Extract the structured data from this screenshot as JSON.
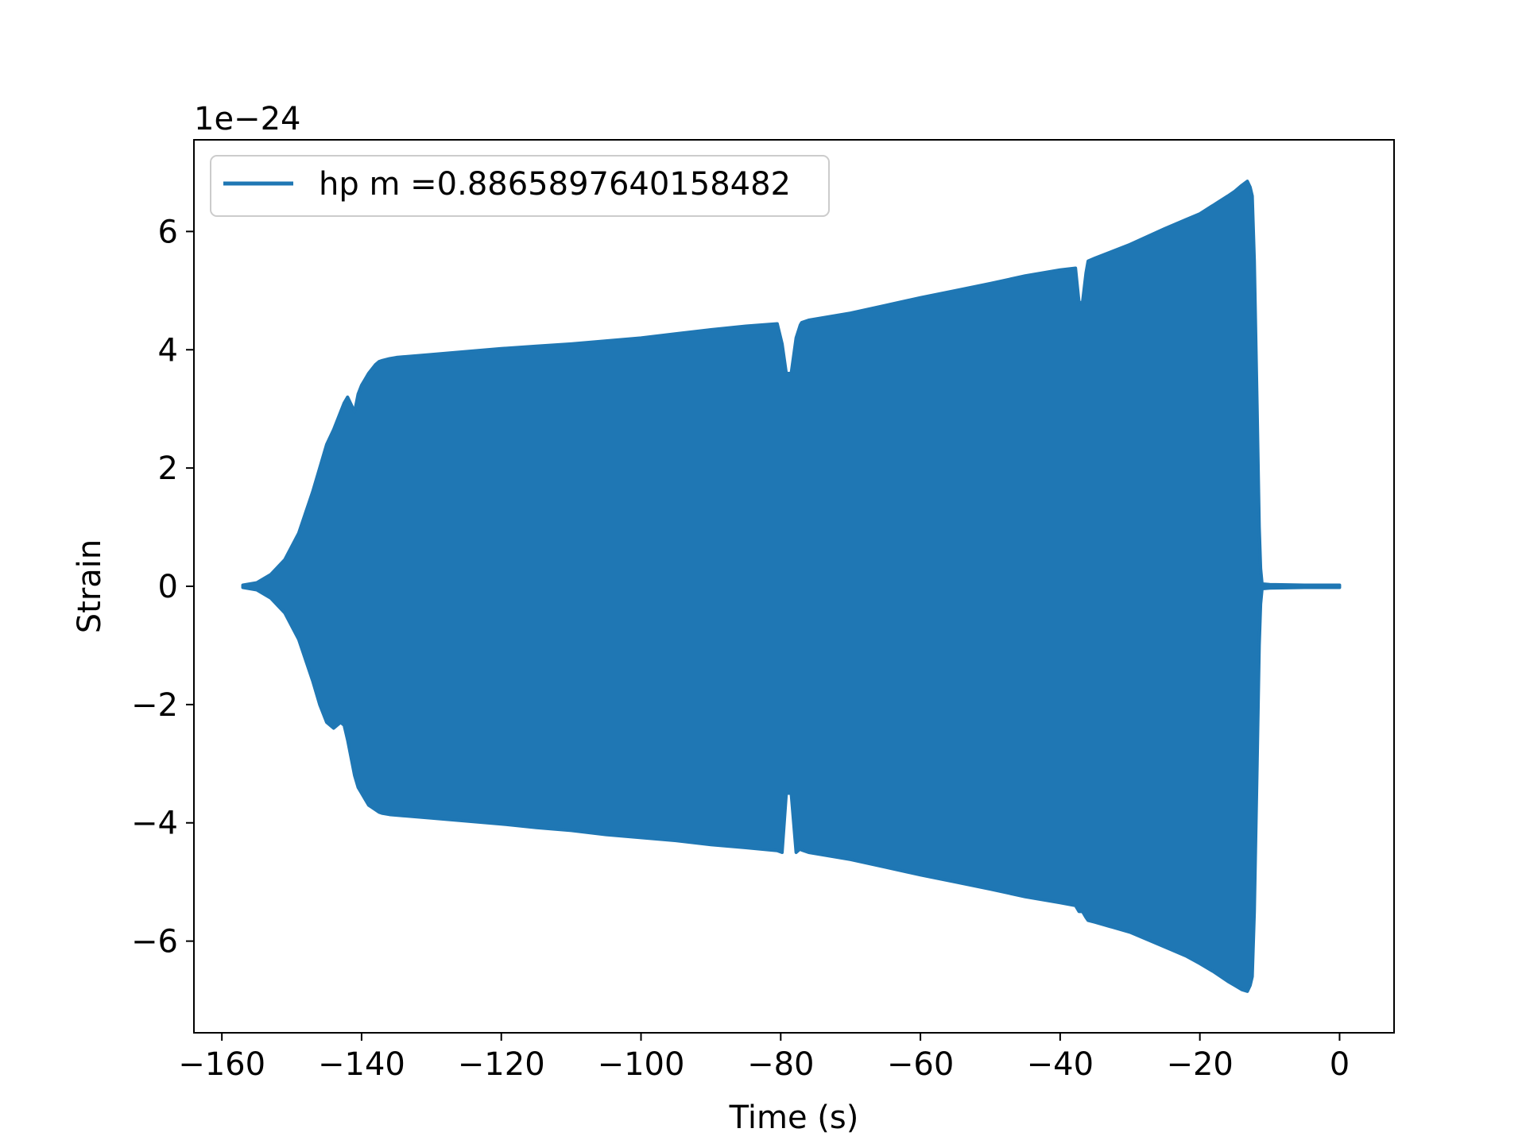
{
  "chart_data": {
    "type": "area",
    "title": "",
    "xlabel": "Time (s)",
    "ylabel": "Strain",
    "y_offset_text": "1e−24",
    "xlim": [
      -164,
      7.8
    ],
    "ylim": [
      -7.55,
      7.55
    ],
    "x_ticks": [
      -160,
      -140,
      -120,
      -100,
      -80,
      -60,
      -40,
      -20,
      0
    ],
    "x_tick_labels": [
      "−160",
      "−140",
      "−120",
      "−100",
      "−80",
      "−60",
      "−40",
      "−20",
      "0"
    ],
    "y_ticks": [
      -6,
      -4,
      -2,
      0,
      2,
      4,
      6
    ],
    "y_tick_labels": [
      "−6",
      "−4",
      "−2",
      "0",
      "2",
      "4",
      "6"
    ],
    "grid": false,
    "legend_position": "upper-left",
    "series": [
      {
        "name": "hp m =0.8865897640158482",
        "color": "#1f77b4",
        "envelope": {
          "x": [
            -157,
            -155,
            -153,
            -151,
            -149,
            -148,
            -147,
            -146,
            -145,
            -144,
            -143,
            -142.5,
            -142,
            -141,
            -140.5,
            -140,
            -139.5,
            -139,
            -138,
            -137.5,
            -137,
            -136,
            -135,
            -134,
            -130,
            -125,
            -120,
            -115,
            -110,
            -105,
            -100,
            -95,
            -90,
            -85,
            -80.5,
            -79.8,
            -79.2,
            -78.5,
            -77.8,
            -77.2,
            -77,
            -76,
            -70,
            -65,
            -60,
            -55,
            -50,
            -45,
            -40,
            -37.8,
            -37.3,
            -36.8,
            -36.3,
            -36,
            -35,
            -30,
            -25,
            -22,
            -20,
            -18,
            -16,
            -15,
            -14,
            -13.2,
            -12.8,
            -12.5,
            -12.2,
            -11.8,
            -11.5,
            -11.3,
            -11.1,
            -11,
            -10,
            -5,
            -2,
            0
          ],
          "upper": [
            0.02,
            0.06,
            0.2,
            0.45,
            0.9,
            1.25,
            1.6,
            2.0,
            2.4,
            2.65,
            2.95,
            3.1,
            3.2,
            2.95,
            3.25,
            3.4,
            3.5,
            3.6,
            3.75,
            3.8,
            3.82,
            3.85,
            3.87,
            3.88,
            3.92,
            3.97,
            4.02,
            4.06,
            4.1,
            4.15,
            4.2,
            4.27,
            4.34,
            4.4,
            4.44,
            4.1,
            3.6,
            3.6,
            4.2,
            4.42,
            4.46,
            4.5,
            4.62,
            4.75,
            4.88,
            5.0,
            5.12,
            5.25,
            5.35,
            5.38,
            4.8,
            4.8,
            5.3,
            5.5,
            5.55,
            5.78,
            6.05,
            6.2,
            6.3,
            6.45,
            6.6,
            6.68,
            6.78,
            6.85,
            6.75,
            6.6,
            5.5,
            3.0,
            1.0,
            0.3,
            0.05,
            0.04,
            0.03,
            0.02,
            0.02,
            0.02
          ],
          "lower": [
            -0.02,
            -0.06,
            -0.2,
            -0.45,
            -0.9,
            -1.25,
            -1.6,
            -2.0,
            -2.3,
            -2.4,
            -2.3,
            -2.35,
            -2.6,
            -3.2,
            -3.4,
            -3.5,
            -3.6,
            -3.7,
            -3.78,
            -3.82,
            -3.84,
            -3.86,
            -3.87,
            -3.88,
            -3.92,
            -3.97,
            -4.02,
            -4.08,
            -4.13,
            -4.2,
            -4.25,
            -4.3,
            -4.37,
            -4.42,
            -4.47,
            -4.5,
            -3.5,
            -3.5,
            -4.5,
            -4.44,
            -4.46,
            -4.5,
            -4.62,
            -4.75,
            -4.88,
            -5.0,
            -5.12,
            -5.25,
            -5.35,
            -5.4,
            -5.5,
            -5.5,
            -5.6,
            -5.65,
            -5.68,
            -5.85,
            -6.1,
            -6.25,
            -6.38,
            -6.52,
            -6.68,
            -6.75,
            -6.82,
            -6.85,
            -6.75,
            -6.6,
            -5.5,
            -3.0,
            -1.0,
            -0.3,
            -0.05,
            -0.04,
            -0.03,
            -0.02,
            -0.02,
            -0.02
          ]
        }
      }
    ]
  }
}
